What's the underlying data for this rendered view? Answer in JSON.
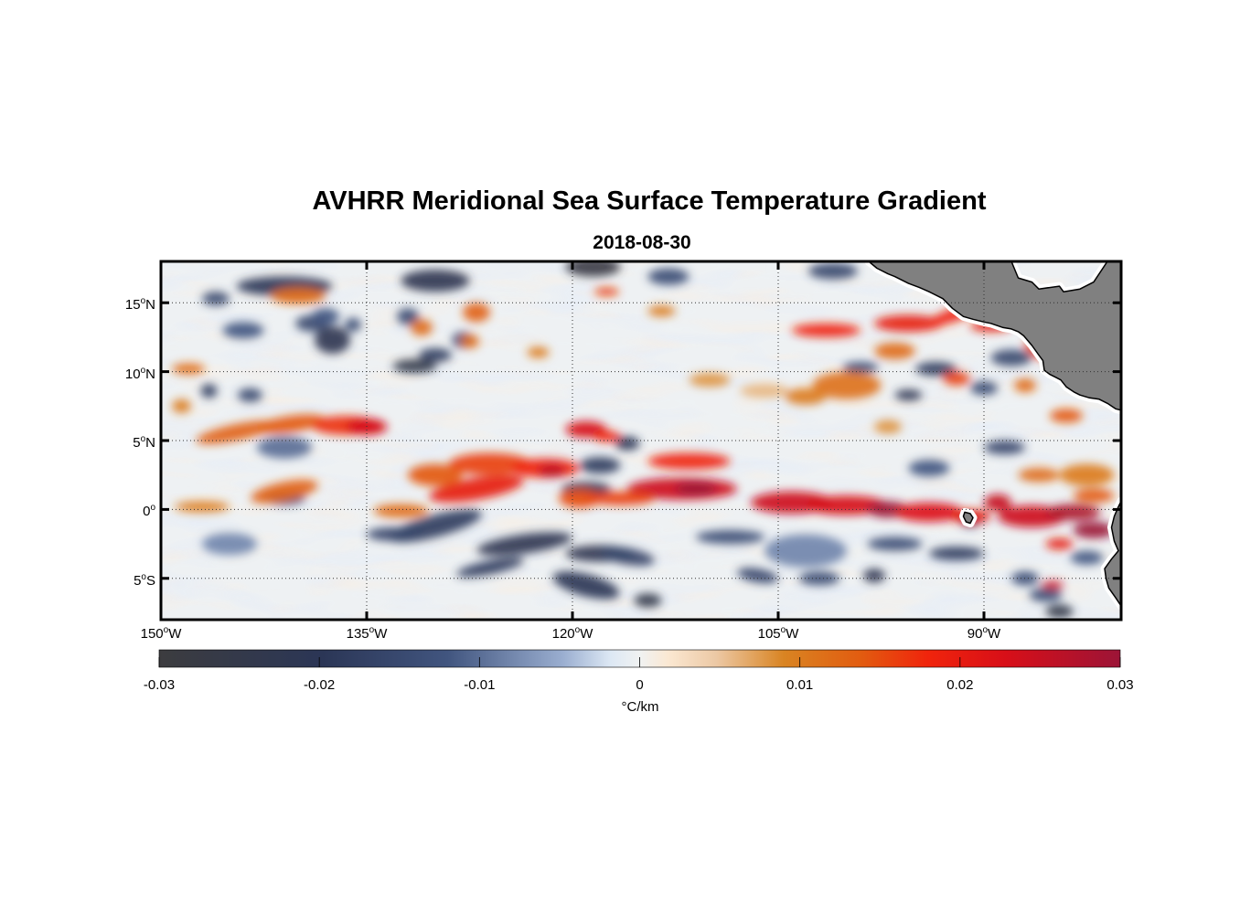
{
  "title": "AVHRR Meridional Sea Surface Temperature Gradient",
  "date": "2018-08-30",
  "lat_ticks": [
    {
      "value": 15,
      "num": "15",
      "deg": "o",
      "hemi": "N"
    },
    {
      "value": 10,
      "num": "10",
      "deg": "o",
      "hemi": "N"
    },
    {
      "value": 5,
      "num": "5",
      "deg": "o",
      "hemi": "N"
    },
    {
      "value": 0,
      "num": "0",
      "deg": "o",
      "hemi": ""
    },
    {
      "value": -5,
      "num": "5",
      "deg": "o",
      "hemi": "S"
    }
  ],
  "lon_ticks": [
    {
      "value": -150,
      "num": "150",
      "deg": "o",
      "hemi": "W"
    },
    {
      "value": -135,
      "num": "135",
      "deg": "o",
      "hemi": "W"
    },
    {
      "value": -120,
      "num": "120",
      "deg": "o",
      "hemi": "W"
    },
    {
      "value": -105,
      "num": "105",
      "deg": "o",
      "hemi": "W"
    },
    {
      "value": -90,
      "num": "90",
      "deg": "o",
      "hemi": "W"
    }
  ],
  "colorbar": {
    "min": -0.03,
    "max": 0.03,
    "tick_values": [
      -0.03,
      -0.02,
      -0.01,
      0,
      0.01,
      0.02,
      0.03
    ],
    "tick_labels": [
      "-0.03",
      "-0.02",
      "-0.01",
      "0",
      "0.01",
      "0.02",
      "0.03"
    ],
    "unit": "°C/km",
    "stops": [
      {
        "v": 0.0,
        "c": "#3c3c3f"
      },
      {
        "v": 0.17,
        "c": "#2b3656"
      },
      {
        "v": 0.3,
        "c": "#41557f"
      },
      {
        "v": 0.42,
        "c": "#9aaed0"
      },
      {
        "v": 0.47,
        "c": "#dde8f4"
      },
      {
        "v": 0.5,
        "c": "#f0f2f2"
      },
      {
        "v": 0.53,
        "c": "#fbe8d2"
      },
      {
        "v": 0.58,
        "c": "#ecc8a4"
      },
      {
        "v": 0.65,
        "c": "#d98422"
      },
      {
        "v": 0.73,
        "c": "#e25c10"
      },
      {
        "v": 0.8,
        "c": "#f0240c"
      },
      {
        "v": 0.88,
        "c": "#d80f18"
      },
      {
        "v": 1.0,
        "c": "#9c1437"
      }
    ]
  },
  "map": {
    "lon_min": -150,
    "lon_max": -80,
    "lat_min": -8,
    "lat_max": 18,
    "land_color": "#808080",
    "features": [
      {
        "lon": -146,
        "lat": 15.3,
        "rx": 1.0,
        "ry": 0.5,
        "v": -0.015
      },
      {
        "lon": -144,
        "lat": 13.0,
        "rx": 1.5,
        "ry": 0.6,
        "v": -0.012
      },
      {
        "lon": -141,
        "lat": 16.2,
        "rx": 3.5,
        "ry": 0.7,
        "v": -0.02
      },
      {
        "lon": -139,
        "lat": 13.5,
        "rx": 1.2,
        "ry": 0.6,
        "v": -0.015
      },
      {
        "lon": -137.5,
        "lat": 12.3,
        "rx": 1.3,
        "ry": 1.0,
        "v": -0.022
      },
      {
        "lon": -138,
        "lat": 14.0,
        "rx": 1.0,
        "ry": 0.6,
        "v": -0.012
      },
      {
        "lon": -136,
        "lat": 13.4,
        "rx": 0.6,
        "ry": 0.5,
        "v": -0.014
      },
      {
        "lon": -146.5,
        "lat": 8.6,
        "rx": 0.6,
        "ry": 0.5,
        "v": -0.018
      },
      {
        "lon": -143.5,
        "lat": 8.3,
        "rx": 0.9,
        "ry": 0.5,
        "v": -0.015
      },
      {
        "lon": -130,
        "lat": 16.6,
        "rx": 2.5,
        "ry": 0.8,
        "v": -0.022
      },
      {
        "lon": -132,
        "lat": 14.0,
        "rx": 0.8,
        "ry": 0.6,
        "v": -0.014
      },
      {
        "lon": -131.5,
        "lat": 10.4,
        "rx": 1.6,
        "ry": 0.5,
        "v": -0.025
      },
      {
        "lon": -130,
        "lat": 11.2,
        "rx": 1.2,
        "ry": 0.5,
        "v": -0.018
      },
      {
        "lon": -128,
        "lat": 12.3,
        "rx": 0.8,
        "ry": 0.6,
        "v": -0.012
      },
      {
        "lon": -118.5,
        "lat": 17.6,
        "rx": 2.0,
        "ry": 0.7,
        "v": -0.028
      },
      {
        "lon": -113,
        "lat": 16.9,
        "rx": 1.5,
        "ry": 0.6,
        "v": -0.014
      },
      {
        "lon": -101,
        "lat": 17.3,
        "rx": 1.8,
        "ry": 0.6,
        "v": -0.015
      },
      {
        "lon": -99,
        "lat": 10.3,
        "rx": 1.3,
        "ry": 0.4,
        "v": -0.015
      },
      {
        "lon": -93.5,
        "lat": 10.2,
        "rx": 1.5,
        "ry": 0.5,
        "v": -0.018
      },
      {
        "lon": -95.5,
        "lat": 8.3,
        "rx": 1.0,
        "ry": 0.4,
        "v": -0.022
      },
      {
        "lon": -90,
        "lat": 8.8,
        "rx": 1.0,
        "ry": 0.5,
        "v": -0.014
      },
      {
        "lon": -88,
        "lat": 11.0,
        "rx": 1.5,
        "ry": 0.6,
        "v": -0.015
      },
      {
        "lon": -94,
        "lat": 3.0,
        "rx": 1.5,
        "ry": 0.6,
        "v": -0.012
      },
      {
        "lon": -88.5,
        "lat": 4.5,
        "rx": 1.5,
        "ry": 0.5,
        "v": -0.016
      },
      {
        "lon": -118,
        "lat": 3.2,
        "rx": 1.5,
        "ry": 0.6,
        "v": -0.018
      },
      {
        "lon": -116,
        "lat": 4.8,
        "rx": 0.9,
        "ry": 0.5,
        "v": -0.02
      },
      {
        "lon": -119,
        "lat": 1.5,
        "rx": 1.8,
        "ry": 0.5,
        "v": -0.022
      },
      {
        "lon": -130,
        "lat": -1.2,
        "rx": 3.5,
        "ry": 0.8,
        "v": -0.018,
        "rot": -15
      },
      {
        "lon": -133,
        "lat": -1.8,
        "rx": 2.0,
        "ry": 0.5,
        "v": -0.016
      },
      {
        "lon": -123.5,
        "lat": -2.5,
        "rx": 3.5,
        "ry": 0.7,
        "v": -0.022,
        "rot": -8
      },
      {
        "lon": -126,
        "lat": -4.2,
        "rx": 2.5,
        "ry": 0.5,
        "v": -0.018,
        "rot": -12
      },
      {
        "lon": -118,
        "lat": -3.2,
        "rx": 2.5,
        "ry": 0.6,
        "v": -0.022
      },
      {
        "lon": -116,
        "lat": -3.4,
        "rx": 2.0,
        "ry": 0.6,
        "v": -0.016,
        "rot": 10
      },
      {
        "lon": -119,
        "lat": -5.5,
        "rx": 2.5,
        "ry": 0.8,
        "v": -0.02,
        "rot": 15
      },
      {
        "lon": -114.5,
        "lat": -6.6,
        "rx": 1.0,
        "ry": 0.5,
        "v": -0.025
      },
      {
        "lon": -108.5,
        "lat": -2.0,
        "rx": 2.5,
        "ry": 0.5,
        "v": -0.014
      },
      {
        "lon": -103,
        "lat": -3.0,
        "rx": 3.0,
        "ry": 1.2,
        "v": -0.008
      },
      {
        "lon": -106.5,
        "lat": -4.8,
        "rx": 1.5,
        "ry": 0.5,
        "v": -0.016,
        "rot": 10
      },
      {
        "lon": -102,
        "lat": -5.0,
        "rx": 1.5,
        "ry": 0.5,
        "v": -0.014
      },
      {
        "lon": -96.5,
        "lat": -2.5,
        "rx": 2.0,
        "ry": 0.5,
        "v": -0.014
      },
      {
        "lon": -92,
        "lat": -3.2,
        "rx": 2.0,
        "ry": 0.5,
        "v": -0.018
      },
      {
        "lon": -98,
        "lat": -4.8,
        "rx": 0.8,
        "ry": 0.5,
        "v": -0.022
      },
      {
        "lon": -91,
        "lat": -0.8,
        "rx": 0.8,
        "ry": 0.5,
        "v": -0.018
      },
      {
        "lon": -87,
        "lat": -5.0,
        "rx": 1.0,
        "ry": 0.5,
        "v": -0.014
      },
      {
        "lon": -85.5,
        "lat": -6.2,
        "rx": 1.2,
        "ry": 0.5,
        "v": -0.014
      },
      {
        "lon": -84.5,
        "lat": -7.4,
        "rx": 1.0,
        "ry": 0.5,
        "v": -0.025
      },
      {
        "lon": -82.5,
        "lat": -3.5,
        "rx": 1.2,
        "ry": 0.5,
        "v": -0.012
      },
      {
        "lon": -141,
        "lat": 4.5,
        "rx": 2.0,
        "ry": 0.8,
        "v": -0.01
      },
      {
        "lon": -145,
        "lat": -2.5,
        "rx": 2.0,
        "ry": 0.8,
        "v": -0.008
      },
      {
        "lon": -141,
        "lat": 0.8,
        "rx": 1.5,
        "ry": 0.5,
        "v": -0.012
      },
      {
        "lon": -140,
        "lat": 15.5,
        "rx": 2.0,
        "ry": 0.6,
        "v": 0.012
      },
      {
        "lon": -131,
        "lat": 13.2,
        "rx": 0.8,
        "ry": 0.6,
        "v": 0.012
      },
      {
        "lon": -127,
        "lat": 14.3,
        "rx": 1.0,
        "ry": 0.7,
        "v": 0.013
      },
      {
        "lon": -127.5,
        "lat": 12.2,
        "rx": 0.7,
        "ry": 0.5,
        "v": 0.012
      },
      {
        "lon": -122.5,
        "lat": 11.4,
        "rx": 0.8,
        "ry": 0.4,
        "v": 0.01
      },
      {
        "lon": -117.5,
        "lat": 15.8,
        "rx": 0.9,
        "ry": 0.3,
        "v": 0.016
      },
      {
        "lon": -113.5,
        "lat": 14.4,
        "rx": 1.0,
        "ry": 0.4,
        "v": 0.01
      },
      {
        "lon": -110,
        "lat": 9.4,
        "rx": 1.5,
        "ry": 0.5,
        "v": 0.008
      },
      {
        "lon": -106,
        "lat": 8.6,
        "rx": 1.8,
        "ry": 0.5,
        "v": 0.006
      },
      {
        "lon": -101.5,
        "lat": 13.0,
        "rx": 2.5,
        "ry": 0.5,
        "v": 0.018
      },
      {
        "lon": -95.5,
        "lat": 13.5,
        "rx": 2.5,
        "ry": 0.6,
        "v": 0.02
      },
      {
        "lon": -92,
        "lat": 14.2,
        "rx": 2.2,
        "ry": 0.5,
        "v": 0.018,
        "rot": -20
      },
      {
        "lon": -89.5,
        "lat": 13.3,
        "rx": 1.5,
        "ry": 0.4,
        "v": 0.02
      },
      {
        "lon": -96.5,
        "lat": 11.5,
        "rx": 1.5,
        "ry": 0.6,
        "v": 0.012
      },
      {
        "lon": -100,
        "lat": 9.0,
        "rx": 2.5,
        "ry": 1.0,
        "v": 0.011
      },
      {
        "lon": -103,
        "lat": 8.2,
        "rx": 1.5,
        "ry": 0.6,
        "v": 0.01
      },
      {
        "lon": -92,
        "lat": 9.5,
        "rx": 1.0,
        "ry": 0.5,
        "v": 0.016
      },
      {
        "lon": -86,
        "lat": 11.5,
        "rx": 1.2,
        "ry": 0.5,
        "v": 0.016,
        "rot": 30
      },
      {
        "lon": -87,
        "lat": 9.0,
        "rx": 0.8,
        "ry": 0.5,
        "v": 0.012
      },
      {
        "lon": -84,
        "lat": 6.8,
        "rx": 1.2,
        "ry": 0.5,
        "v": 0.014
      },
      {
        "lon": -97,
        "lat": 6.0,
        "rx": 1.0,
        "ry": 0.5,
        "v": 0.008
      },
      {
        "lon": -82.5,
        "lat": 2.5,
        "rx": 2.0,
        "ry": 0.8,
        "v": 0.01
      },
      {
        "lon": -148,
        "lat": 10.2,
        "rx": 1.2,
        "ry": 0.4,
        "v": 0.012
      },
      {
        "lon": -148.5,
        "lat": 7.5,
        "rx": 0.7,
        "ry": 0.5,
        "v": 0.01
      },
      {
        "lon": -144.5,
        "lat": 5.6,
        "rx": 3.0,
        "ry": 0.6,
        "v": 0.013,
        "rot": -12
      },
      {
        "lon": -140.5,
        "lat": 6.2,
        "rx": 2.5,
        "ry": 0.6,
        "v": 0.014,
        "rot": -8
      },
      {
        "lon": -136.5,
        "lat": 6.1,
        "rx": 2.5,
        "ry": 0.7,
        "v": 0.017
      },
      {
        "lon": -135,
        "lat": 6.0,
        "rx": 1.5,
        "ry": 0.6,
        "v": 0.023
      },
      {
        "lon": -141,
        "lat": 1.3,
        "rx": 2.5,
        "ry": 0.7,
        "v": 0.013,
        "rot": -12
      },
      {
        "lon": -147,
        "lat": 0.2,
        "rx": 2.0,
        "ry": 0.4,
        "v": 0.01
      },
      {
        "lon": -130,
        "lat": 2.5,
        "rx": 2.0,
        "ry": 0.8,
        "v": 0.014
      },
      {
        "lon": -127,
        "lat": 1.5,
        "rx": 3.5,
        "ry": 0.8,
        "v": 0.02,
        "rot": -10
      },
      {
        "lon": -126,
        "lat": 3.3,
        "rx": 3.0,
        "ry": 0.8,
        "v": 0.016
      },
      {
        "lon": -122,
        "lat": 3.0,
        "rx": 2.5,
        "ry": 0.7,
        "v": 0.018
      },
      {
        "lon": -121.5,
        "lat": 2.8,
        "rx": 1.0,
        "ry": 0.5,
        "v": 0.026
      },
      {
        "lon": -132.5,
        "lat": -0.1,
        "rx": 2.0,
        "ry": 0.5,
        "v": 0.012
      },
      {
        "lon": -119,
        "lat": 5.8,
        "rx": 1.5,
        "ry": 0.6,
        "v": 0.023
      },
      {
        "lon": -117.5,
        "lat": 5.3,
        "rx": 1.0,
        "ry": 0.4,
        "v": 0.018
      },
      {
        "lon": -119.5,
        "lat": 0.8,
        "rx": 1.5,
        "ry": 0.7,
        "v": 0.015
      },
      {
        "lon": -112,
        "lat": 1.5,
        "rx": 4.0,
        "ry": 0.8,
        "v": 0.024
      },
      {
        "lon": -111,
        "lat": 1.5,
        "rx": 1.5,
        "ry": 0.5,
        "v": 0.03
      },
      {
        "lon": -111.5,
        "lat": 3.5,
        "rx": 3.0,
        "ry": 0.6,
        "v": 0.018
      },
      {
        "lon": -116.5,
        "lat": 0.8,
        "rx": 2.5,
        "ry": 0.5,
        "v": 0.016
      },
      {
        "lon": -104,
        "lat": 0.5,
        "rx": 3.0,
        "ry": 0.8,
        "v": 0.024
      },
      {
        "lon": -100,
        "lat": 0.3,
        "rx": 3.0,
        "ry": 0.7,
        "v": 0.023
      },
      {
        "lon": -97,
        "lat": 0.0,
        "rx": 1.5,
        "ry": 0.6,
        "v": 0.03
      },
      {
        "lon": -94,
        "lat": -0.2,
        "rx": 2.5,
        "ry": 0.7,
        "v": 0.022
      },
      {
        "lon": -91,
        "lat": -0.5,
        "rx": 1.5,
        "ry": 0.5,
        "v": 0.02
      },
      {
        "lon": -86.5,
        "lat": -0.5,
        "rx": 2.5,
        "ry": 0.8,
        "v": 0.024
      },
      {
        "lon": -83.5,
        "lat": -0.2,
        "rx": 2.0,
        "ry": 0.6,
        "v": 0.028
      },
      {
        "lon": -82,
        "lat": -1.5,
        "rx": 1.5,
        "ry": 0.6,
        "v": 0.03
      },
      {
        "lon": -84.5,
        "lat": -2.5,
        "rx": 1.0,
        "ry": 0.4,
        "v": 0.02
      },
      {
        "lon": -85,
        "lat": -5.5,
        "rx": 0.8,
        "ry": 0.3,
        "v": 0.024
      },
      {
        "lon": -82,
        "lat": 1.0,
        "rx": 1.5,
        "ry": 0.5,
        "v": 0.014
      },
      {
        "lon": -86,
        "lat": 2.5,
        "rx": 1.5,
        "ry": 0.5,
        "v": 0.012
      },
      {
        "lon": -89,
        "lat": 0.5,
        "rx": 1.0,
        "ry": 0.6,
        "v": 0.025
      }
    ],
    "land": [
      {
        "name": "central-america",
        "pts": [
          [
            -98.4,
            18
          ],
          [
            -97.8,
            17.5
          ],
          [
            -97,
            17.1
          ],
          [
            -96.5,
            16.9
          ],
          [
            -95.5,
            16.4
          ],
          [
            -94.7,
            16.1
          ],
          [
            -94,
            15.8
          ],
          [
            -93,
            15.3
          ],
          [
            -92.3,
            14.6
          ],
          [
            -91.5,
            14.0
          ],
          [
            -90.8,
            13.8
          ],
          [
            -90,
            13.6
          ],
          [
            -89.5,
            13.5
          ],
          [
            -88.6,
            13.2
          ],
          [
            -88,
            13.1
          ],
          [
            -87.5,
            12.9
          ],
          [
            -87.1,
            12.6
          ],
          [
            -86.5,
            11.9
          ],
          [
            -86,
            11.2
          ],
          [
            -85.7,
            10.8
          ],
          [
            -85.6,
            10.1
          ],
          [
            -85.2,
            9.8
          ],
          [
            -84.8,
            9.6
          ],
          [
            -84.4,
            9.4
          ],
          [
            -84,
            8.9
          ],
          [
            -83.4,
            8.5
          ],
          [
            -83,
            8.3
          ],
          [
            -82.3,
            8.1
          ],
          [
            -81.6,
            8.0
          ],
          [
            -81,
            7.7
          ],
          [
            -80.4,
            7.3
          ],
          [
            -80,
            7.2
          ],
          [
            -80,
            18
          ],
          [
            -81,
            18
          ],
          [
            -82,
            16.5
          ],
          [
            -83,
            16
          ],
          [
            -84.2,
            15.8
          ],
          [
            -84.5,
            16.2
          ],
          [
            -86,
            16
          ],
          [
            -86.5,
            16.5
          ],
          [
            -87.5,
            16.8
          ],
          [
            -88,
            18
          ],
          [
            -98.4,
            18
          ]
        ]
      },
      {
        "name": "colombia-coast",
        "pts": [
          [
            -80,
            0.6
          ],
          [
            -80.2,
            0.2
          ],
          [
            -80.5,
            -0.5
          ],
          [
            -80.7,
            -1.3
          ],
          [
            -80.5,
            -2.3
          ],
          [
            -80.2,
            -3.0
          ],
          [
            -80.7,
            -3.6
          ],
          [
            -81.2,
            -4.3
          ],
          [
            -81.1,
            -5.0
          ],
          [
            -80.9,
            -5.7
          ],
          [
            -80.4,
            -6.4
          ],
          [
            -80,
            -7.0
          ],
          [
            -80,
            0.6
          ]
        ]
      },
      {
        "name": "galapagos",
        "pts": [
          [
            -91.4,
            -0.2
          ],
          [
            -91.0,
            -0.3
          ],
          [
            -90.8,
            -0.6
          ],
          [
            -91.0,
            -1.0
          ],
          [
            -91.3,
            -0.9
          ],
          [
            -91.5,
            -0.5
          ]
        ]
      }
    ]
  }
}
